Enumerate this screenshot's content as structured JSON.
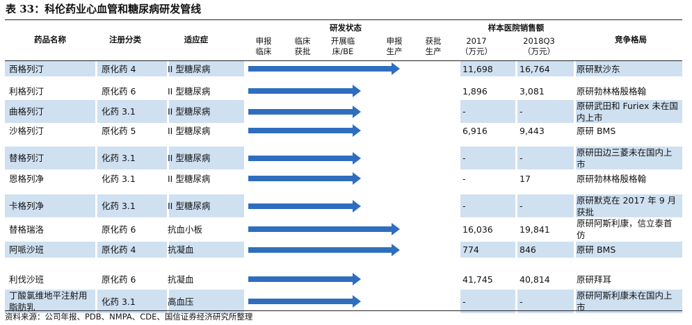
{
  "title": "表 33：科伦药业心血管和糖尿病研发管线",
  "headers": {
    "drug": "药品名称",
    "category": "注册分类",
    "indication": "适应症",
    "dev_status": "研发状态",
    "sales": "样本医院销售额",
    "competition": "竞争格局",
    "stage1": "申报\n临床",
    "stage2": "临床\n获批",
    "stage3": "开展临\n床/BE",
    "stage4": "申报\n生产",
    "stage5": "获批\n生产",
    "year1": "2017\n（万元）",
    "year2": "2018Q3\n（万元）"
  },
  "rows": [
    {
      "drug": "西格列汀",
      "category": "原化药 4",
      "indication": "II 型糖尿病",
      "stage": 4,
      "sales2017": "11,698",
      "sales2018": "16,764",
      "competition": "原研默沙东"
    },
    {
      "drug": "利格列汀",
      "category": "原化药 6",
      "indication": "II 型糖尿病",
      "stage": 3,
      "sales2017": "1,896",
      "sales2018": "3,081",
      "competition": "原研勃林格殷格翰"
    },
    {
      "drug": "曲格列汀",
      "category": "化药 3.1",
      "indication": "II 型糖尿病",
      "stage": 3,
      "sales2017": "-",
      "sales2018": "-",
      "competition": "原研武田和 Furiex 未在国内上市"
    },
    {
      "drug": "沙格列汀",
      "category": "原化药 5",
      "indication": "II 型糖尿病",
      "stage": 3,
      "sales2017": "6,916",
      "sales2018": "9,443",
      "competition": "原研 BMS"
    },
    {
      "drug": "替格列汀",
      "category": "化药 3.1",
      "indication": "II 型糖尿病",
      "stage": 3,
      "sales2017": "-",
      "sales2018": "-",
      "competition": "原研田边三菱未在国内上市"
    },
    {
      "drug": "恩格列净",
      "category": "化药 3.1",
      "indication": "II 型糖尿病",
      "stage": 3,
      "sales2017": "-",
      "sales2018": "17",
      "competition": "原研勃林格殷格翰"
    },
    {
      "drug": "卡格列净",
      "category": "化药 3.1",
      "indication": "II 型糖尿病",
      "stage": 3,
      "sales2017": "-",
      "sales2018": "-",
      "competition": "原研默克在 2017 年 9 月获批"
    },
    {
      "drug": "替格瑞洛",
      "category": "原化药 6",
      "indication": "抗血小板",
      "stage": 4,
      "sales2017": "16,036",
      "sales2018": "19,841",
      "competition": "原研阿斯利康，信立泰首仿"
    },
    {
      "drug": "阿哌沙班",
      "category": "原化药 4",
      "indication": "抗凝血",
      "stage": 4,
      "sales2017": "774",
      "sales2018": "846",
      "competition": "原研 BMS"
    },
    {
      "drug": "利伐沙班",
      "category": "原化药 6",
      "indication": "抗凝血",
      "stage": 3,
      "sales2017": "41,745",
      "sales2018": "40,814",
      "competition": "原研拜耳"
    },
    {
      "drug": "丁酸氯维地平注射用脂肪乳",
      "category": "化药 3.1",
      "indication": "高血压",
      "stage": 3,
      "sales2017": "-",
      "sales2018": "-",
      "competition": "原研阿斯利康未在国内上市"
    }
  ],
  "footer": "资料来源：公司年报、PDB、NMPA、CDE、国信证券经济研究所整理",
  "colors": {
    "shade": "#cfe0f1",
    "arrow": "#2f6ebf"
  }
}
